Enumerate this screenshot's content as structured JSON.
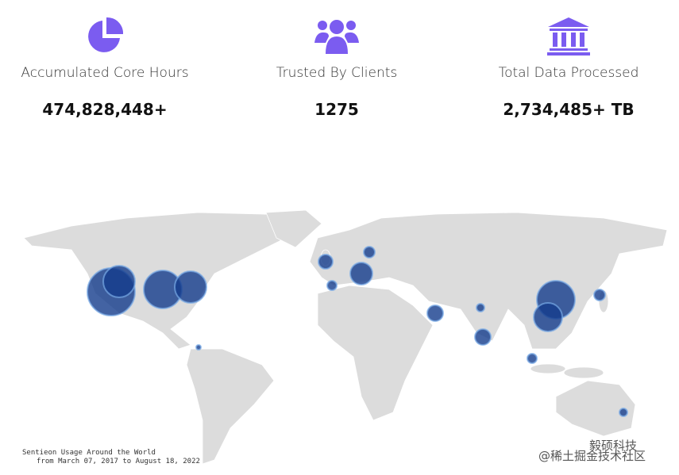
{
  "stats": [
    {
      "label": "Accumulated Core Hours",
      "value": "474,828,448+"
    },
    {
      "label": "Trusted By Clients",
      "value": "1275"
    },
    {
      "label": "Total Data Processed",
      "value": "2,734,485+ TB"
    }
  ],
  "map": {
    "caption": [
      "Sentieon Usage Around the World",
      "from March 07, 2017 to August 18, 2022"
    ]
  },
  "watermark": [
    "毅硕科技",
    "@稀土掘金技术社区"
  ]
}
